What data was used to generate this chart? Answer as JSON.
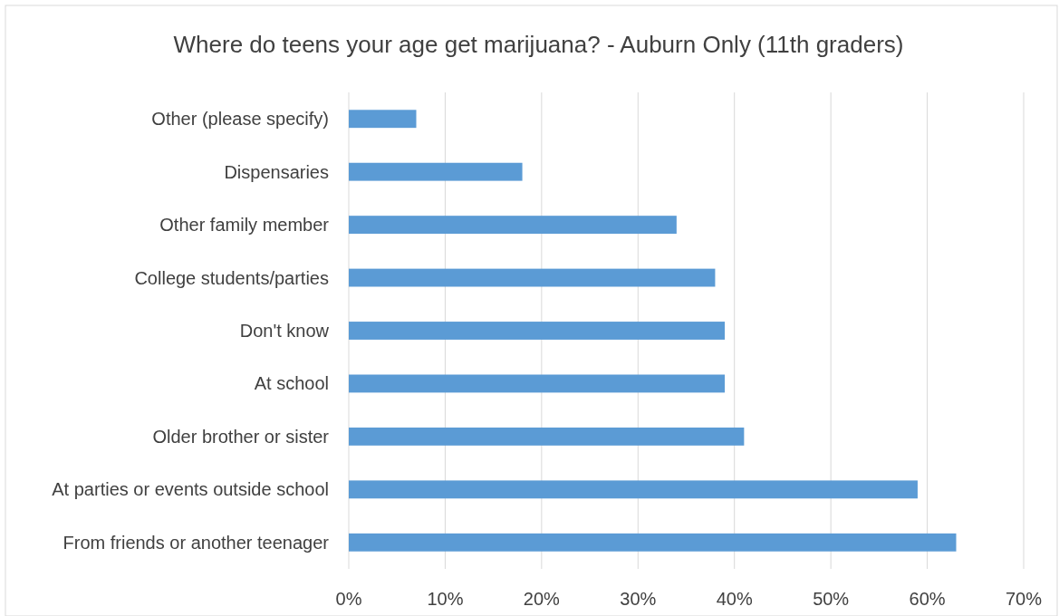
{
  "chart_data": {
    "type": "bar",
    "orientation": "horizontal",
    "title": "Where do teens your age get marijuana? - Auburn Only (11th graders)",
    "categories": [
      "Other (please specify)",
      "Dispensaries",
      "Other family member",
      "College students/parties",
      "Don't know",
      "At school",
      "Older brother or sister",
      "At parties or events outside school",
      "From friends or another teenager"
    ],
    "values": [
      0.07,
      0.18,
      0.34,
      0.38,
      0.39,
      0.39,
      0.41,
      0.59,
      0.63
    ],
    "color": "#5b9bd5",
    "xlim": [
      0,
      0.7
    ],
    "xticks": [
      {
        "value": 0,
        "label": "0%"
      },
      {
        "value": 0.1,
        "label": "10%"
      },
      {
        "value": 0.2,
        "label": "20%"
      },
      {
        "value": 0.3,
        "label": "30%"
      },
      {
        "value": 0.4,
        "label": "40%"
      },
      {
        "value": 0.5,
        "label": "50%"
      },
      {
        "value": 0.6,
        "label": "60%"
      },
      {
        "value": 0.7,
        "label": "70%"
      }
    ],
    "grid": "x"
  }
}
